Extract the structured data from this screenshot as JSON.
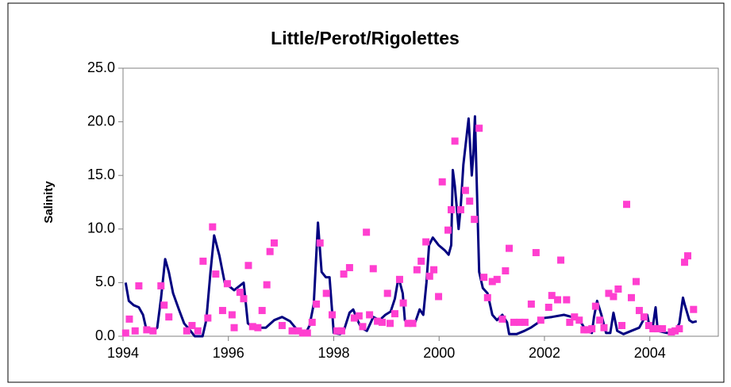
{
  "chart_data": {
    "type": "line",
    "title": "Little/Perot/Rigolettes",
    "y_label": "Salinity",
    "xlim": [
      1994,
      2005.3
    ],
    "xticks": [
      1994,
      1996,
      1998,
      2000,
      2002,
      2004
    ],
    "ylim": [
      0,
      25
    ],
    "yticks": [
      {
        "value": 0,
        "label": "0.0"
      },
      {
        "value": 5,
        "label": "5.0"
      },
      {
        "value": 10,
        "label": "10.0"
      },
      {
        "value": 15,
        "label": "15.0"
      },
      {
        "value": 20,
        "label": "20.0"
      },
      {
        "value": 25,
        "label": "25.0"
      }
    ],
    "grid": false,
    "series": [
      {
        "type": "line",
        "color": "#000080",
        "x": [
          1994.05,
          1994.11,
          1994.2,
          1994.3,
          1994.38,
          1994.44,
          1994.56,
          1994.65,
          1994.72,
          1994.8,
          1994.87,
          1994.95,
          1995.06,
          1995.16,
          1995.28,
          1995.36,
          1995.51,
          1995.58,
          1995.66,
          1995.73,
          1995.83,
          1995.93,
          1996.11,
          1996.29,
          1996.37,
          1996.49,
          1996.71,
          1996.87,
          1997.02,
          1997.17,
          1997.32,
          1997.47,
          1997.54,
          1997.62,
          1997.7,
          1997.77,
          1997.85,
          1997.92,
          1998.0,
          1998.12,
          1998.19,
          1998.3,
          1998.37,
          1998.45,
          1998.52,
          1998.63,
          1998.75,
          1998.87,
          1998.98,
          1999.08,
          1999.16,
          1999.23,
          1999.31,
          1999.35,
          1999.43,
          1999.54,
          1999.63,
          1999.7,
          1999.76,
          1999.81,
          1999.88,
          1999.99,
          2000.11,
          2000.18,
          2000.23,
          2000.26,
          2000.3,
          2000.37,
          2000.41,
          2000.46,
          2000.56,
          2000.62,
          2000.65,
          2000.68,
          2000.71,
          2000.76,
          2000.83,
          2000.92,
          2001.01,
          2001.1,
          2001.2,
          2001.29,
          2001.33,
          2001.47,
          2001.62,
          2001.74,
          2001.86,
          2001.99,
          2002.14,
          2002.37,
          2002.52,
          2002.67,
          2002.79,
          2002.9,
          2002.94,
          2003.0,
          2003.08,
          2003.17,
          2003.25,
          2003.31,
          2003.38,
          2003.5,
          2003.65,
          2003.8,
          2003.91,
          2003.95,
          2004.0,
          2004.06,
          2004.11,
          2004.15,
          2004.33,
          2004.48,
          2004.56,
          2004.63,
          2004.66,
          2004.75,
          2004.81,
          2004.89
        ],
        "values": [
          5.0,
          3.3,
          2.9,
          2.7,
          2.0,
          0.7,
          0.5,
          0.8,
          3.5,
          7.2,
          6.0,
          4.0,
          2.5,
          1.2,
          0.5,
          0.0,
          0.0,
          1.5,
          6.0,
          9.4,
          7.5,
          5.0,
          4.3,
          5.0,
          1.2,
          0.8,
          0.8,
          1.5,
          1.8,
          1.4,
          0.5,
          0.3,
          1.0,
          3.0,
          10.6,
          6.0,
          5.5,
          5.5,
          0.3,
          0.2,
          0.5,
          2.2,
          2.5,
          1.5,
          0.8,
          0.5,
          1.8,
          1.5,
          2.0,
          2.3,
          3.5,
          5.5,
          4.0,
          1.5,
          1.0,
          1.2,
          2.5,
          2.0,
          5.0,
          8.5,
          9.2,
          8.5,
          8.0,
          7.6,
          8.5,
          15.5,
          14.0,
          10.0,
          12.0,
          16.0,
          20.3,
          15.0,
          17.0,
          20.5,
          15.0,
          6.0,
          4.5,
          4.0,
          2.0,
          1.5,
          2.0,
          1.3,
          0.2,
          0.2,
          0.5,
          0.8,
          1.2,
          1.7,
          1.8,
          2.0,
          1.8,
          1.5,
          0.5,
          0.3,
          1.8,
          3.3,
          2.0,
          0.3,
          0.3,
          2.2,
          0.5,
          0.2,
          0.5,
          0.8,
          1.8,
          2.0,
          0.8,
          1.0,
          2.7,
          0.5,
          0.3,
          0.5,
          1.2,
          3.6,
          3.0,
          1.5,
          1.3,
          1.4
        ]
      },
      {
        "type": "scatter",
        "color": "#ff3fd0",
        "x": [
          1994.05,
          1994.12,
          1994.23,
          1994.3,
          1994.45,
          1994.57,
          1994.72,
          1994.78,
          1994.87,
          1995.21,
          1995.31,
          1995.42,
          1995.52,
          1995.61,
          1995.7,
          1995.76,
          1995.89,
          1995.98,
          1996.07,
          1996.11,
          1996.22,
          1996.29,
          1996.38,
          1996.46,
          1996.56,
          1996.64,
          1996.73,
          1996.79,
          1996.87,
          1997.02,
          1997.21,
          1997.33,
          1997.41,
          1997.5,
          1997.59,
          1997.67,
          1997.74,
          1997.86,
          1997.97,
          1998.06,
          1998.15,
          1998.19,
          1998.3,
          1998.39,
          1998.48,
          1998.55,
          1998.62,
          1998.68,
          1998.75,
          1998.83,
          1998.92,
          1999.02,
          1999.07,
          1999.16,
          1999.25,
          1999.32,
          1999.41,
          1999.5,
          1999.58,
          1999.66,
          1999.75,
          1999.82,
          1999.9,
          1999.99,
          2000.06,
          2000.17,
          2000.23,
          2000.3,
          2000.41,
          2000.5,
          2000.58,
          2000.67,
          2000.76,
          2000.85,
          2000.92,
          2001.01,
          2001.1,
          2001.2,
          2001.26,
          2001.33,
          2001.42,
          2001.53,
          2001.63,
          2001.75,
          2001.84,
          2001.93,
          2002.08,
          2002.14,
          2002.25,
          2002.31,
          2002.42,
          2002.48,
          2002.57,
          2002.66,
          2002.75,
          2002.82,
          2002.9,
          2002.97,
          2003.05,
          2003.13,
          2003.22,
          2003.31,
          2003.4,
          2003.47,
          2003.56,
          2003.65,
          2003.74,
          2003.8,
          2003.89,
          2003.98,
          2004.06,
          2004.15,
          2004.24,
          2004.41,
          2004.48,
          2004.56,
          2004.66,
          2004.72,
          2004.83
        ],
        "values": [
          0.3,
          1.6,
          0.5,
          4.7,
          0.6,
          0.5,
          4.7,
          2.9,
          1.8,
          0.5,
          1.0,
          0.5,
          7.0,
          1.7,
          10.2,
          5.8,
          2.4,
          4.9,
          2.0,
          0.8,
          4.1,
          3.5,
          6.6,
          0.9,
          0.8,
          2.4,
          4.8,
          7.9,
          8.7,
          1.0,
          0.5,
          0.5,
          0.3,
          0.3,
          1.3,
          3.0,
          8.7,
          4.0,
          2.0,
          0.5,
          0.5,
          5.8,
          6.4,
          1.7,
          1.9,
          0.9,
          9.7,
          2.0,
          6.3,
          1.4,
          1.3,
          4.0,
          1.2,
          2.1,
          5.3,
          3.1,
          1.2,
          1.2,
          6.2,
          7.0,
          8.8,
          5.6,
          6.2,
          3.7,
          14.4,
          9.9,
          11.8,
          18.2,
          11.8,
          13.6,
          12.6,
          10.9,
          19.4,
          5.5,
          3.6,
          5.1,
          5.3,
          1.6,
          6.1,
          8.2,
          1.3,
          1.3,
          1.3,
          3.0,
          7.8,
          1.5,
          2.7,
          3.8,
          3.4,
          7.1,
          3.4,
          1.3,
          1.8,
          1.5,
          0.6,
          0.6,
          0.7,
          2.8,
          1.5,
          0.8,
          4.0,
          3.7,
          4.4,
          1.0,
          12.3,
          3.6,
          5.1,
          2.4,
          1.8,
          1.0,
          0.7,
          0.7,
          0.7,
          0.4,
          0.5,
          0.7,
          6.9,
          7.5,
          2.5
        ]
      }
    ]
  }
}
